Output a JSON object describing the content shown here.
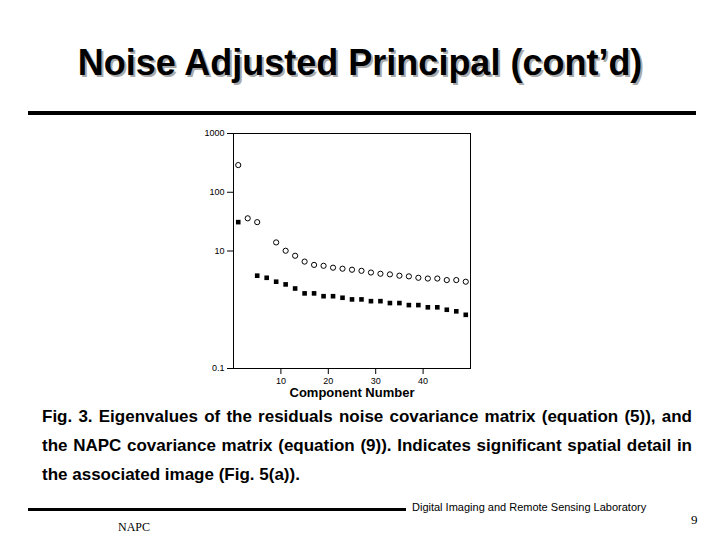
{
  "slide": {
    "title": "Noise Adjusted Principal (cont’d)",
    "caption": "Fig. 3. Eigenvalues of the residuals noise covariance matrix (equation (5)), and the NAPC covariance matrix (equation (9)). Indicates significant spatial detail in the associated image (Fig. 5(a)).",
    "footer": "Digital Imaging and Remote Sensing Laboratory",
    "footer_short": "NAPC",
    "page": "9"
  },
  "chart_data": {
    "type": "scatter",
    "x_label": "Component Number",
    "log": "y",
    "xlim": [
      0,
      50
    ],
    "xticks": [
      10,
      20,
      30,
      40
    ],
    "ylim": [
      0.1,
      1000
    ],
    "yticks": [
      0.1,
      10,
      100,
      1000
    ],
    "series": [
      {
        "color": "#000000",
        "marker": "circle",
        "x": [
          1,
          3,
          5,
          9,
          11,
          13,
          15,
          17,
          19,
          21,
          23,
          25,
          27,
          29,
          31,
          33,
          35,
          37,
          39,
          41,
          43,
          45,
          47,
          49
        ],
        "values": [
          290,
          36,
          31,
          14,
          10.1,
          8.3,
          6.6,
          5.8,
          5.6,
          5.2,
          5.0,
          4.8,
          4.6,
          4.3,
          4.1,
          4.0,
          3.8,
          3.7,
          3.5,
          3.4,
          3.4,
          3.2,
          3.2,
          3.0
        ]
      },
      {
        "color": "#000000",
        "marker": "square",
        "x": [
          1,
          5,
          7,
          9,
          11,
          13,
          15,
          17,
          19,
          21,
          23,
          25,
          27,
          29,
          31,
          33,
          35,
          37,
          39,
          41,
          43,
          45,
          47,
          49
        ],
        "values": [
          31,
          3.8,
          3.5,
          3.0,
          2.7,
          2.3,
          1.9,
          1.9,
          1.7,
          1.7,
          1.6,
          1.5,
          1.5,
          1.4,
          1.4,
          1.3,
          1.3,
          1.2,
          1.2,
          1.1,
          1.1,
          1.0,
          0.94,
          0.82
        ]
      }
    ]
  }
}
